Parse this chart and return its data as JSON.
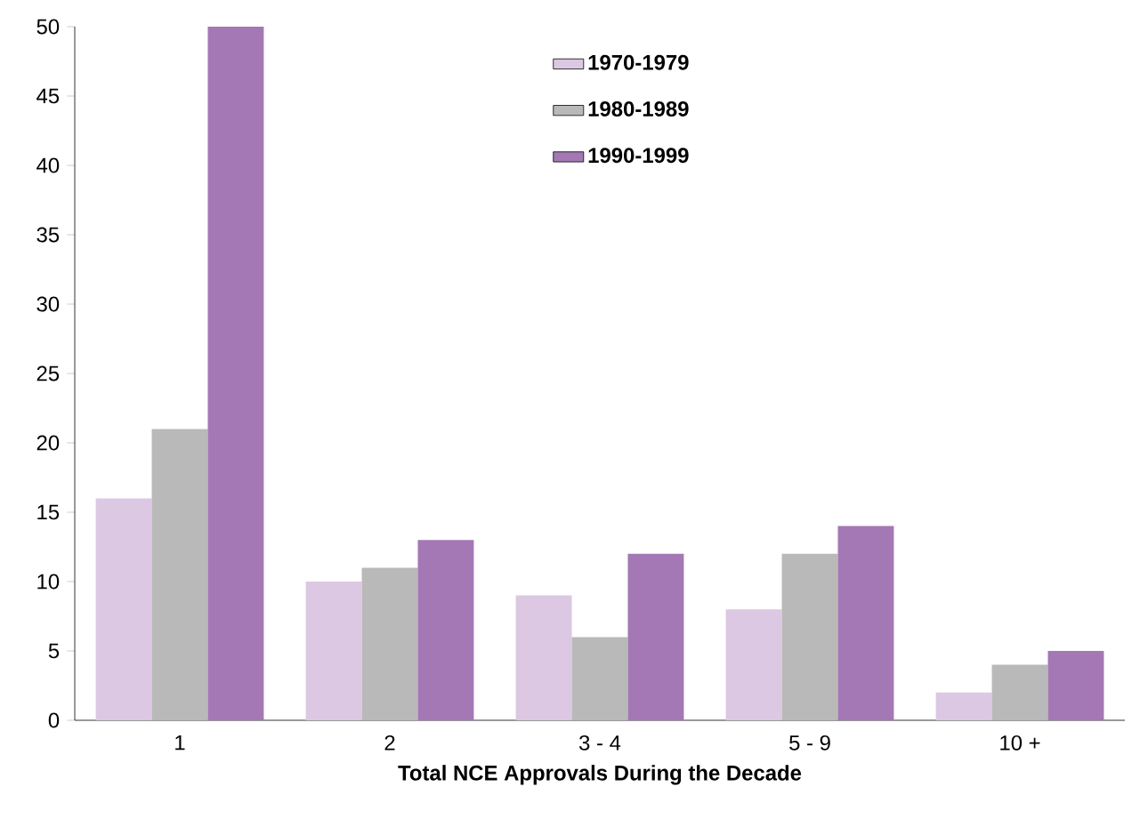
{
  "chart_data": {
    "type": "bar",
    "xlabel": "Total NCE Approvals During the Decade",
    "categories": [
      "1",
      "2",
      "3 - 4",
      "5 - 9",
      "10 +"
    ],
    "series": [
      {
        "name": "1970-1979",
        "color": "#dcc8e2",
        "values": [
          16,
          10,
          9,
          8,
          2
        ]
      },
      {
        "name": "1980-1989",
        "color": "#b9b9b9",
        "values": [
          21,
          11,
          6,
          12,
          4
        ]
      },
      {
        "name": "1990-1999",
        "color": "#a478b4",
        "values": [
          50,
          13,
          12,
          14,
          5
        ]
      }
    ],
    "ylim": [
      0,
      50
    ],
    "yticks": [
      0,
      5,
      10,
      15,
      20,
      25,
      30,
      35,
      40,
      45,
      50
    ],
    "grid": false,
    "legend": "top"
  }
}
